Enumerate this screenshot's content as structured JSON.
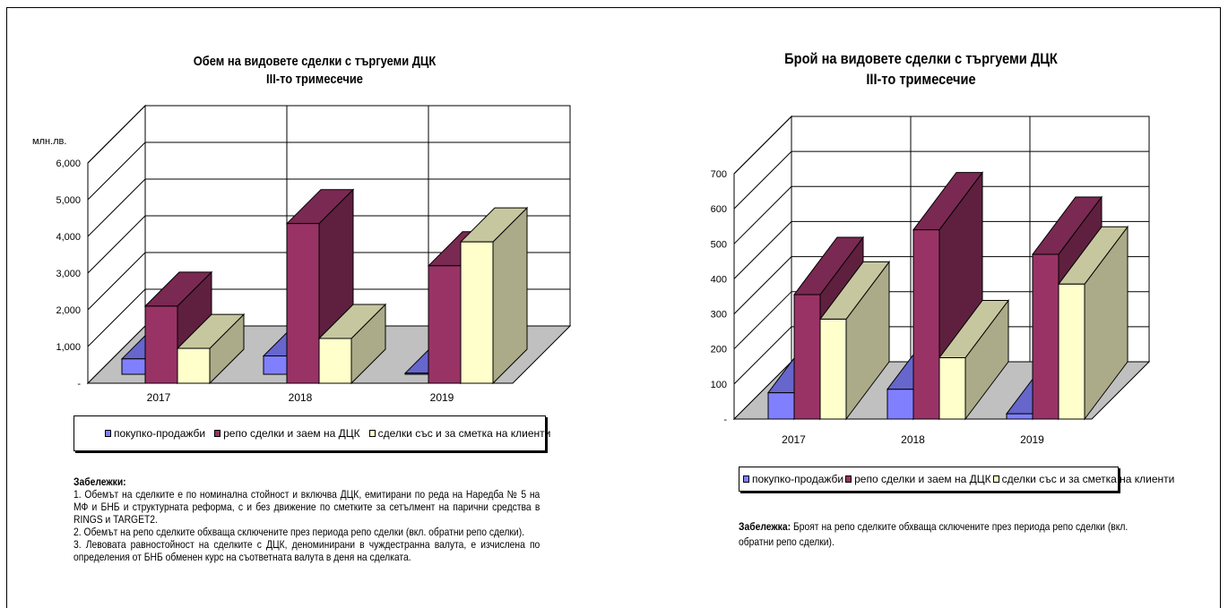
{
  "left": {
    "title_line1": "Обем на видовете сделки с търгуеми ДЦК",
    "title_line2": "III-то тримесечие",
    "unit_label": "млн.лв.",
    "notes_heading": "Забележки:",
    "notes": [
      "1. Обемът на сделките е по номинална стойност и включва ДЦК, емитирани по реда на Наредба № 5 на МФ и БНБ и структурната реформа, с и без движение по сметките за сетълмент на парични средства в RINGS и TARGET2.",
      "2. Обемът на репо сделките обхваща сключените през периода репо сделки (вкл. обратни репо сделки).",
      "3. Левовата равностойност на сделките с ДЦК, деноминирани в чуждестранна валута, е изчислена по определения от БНБ обменен курс на съответната валута в деня на сделката."
    ]
  },
  "right": {
    "title_line1": "Брой на видовете сделки с търгуеми ДЦК",
    "title_line2": "III-то тримесечие",
    "note_label": "Забележка:",
    "note_text": " Броят на репо сделките обхваща сключените през периода репо сделки (вкл. обратни репо сделки)."
  },
  "legend": {
    "item1": "покупко-продажби",
    "item2": "репо сделки и заем на ДЦК",
    "item3": "сделки със и за сметка на клиенти"
  },
  "colors": {
    "series1": "#8080ff",
    "series2": "#993366",
    "series3": "#ffffcc",
    "floor": "#c0c0c0"
  },
  "chart_data": [
    {
      "type": "bar",
      "title": "Обем на видовете сделки с търгуеми ДЦК III-то тримесечие",
      "ylabel": "млн.лв.",
      "categories": [
        "2017",
        "2018",
        "2019"
      ],
      "ylim": [
        0,
        6000
      ],
      "yticks": [
        "-",
        "1,000",
        "2,000",
        "3,000",
        "4,000",
        "5,000",
        "6,000"
      ],
      "series": [
        {
          "name": "покупко-продажби",
          "values": [
            420,
            500,
            30
          ]
        },
        {
          "name": "репо сделки и заем на ДЦК",
          "values": [
            2100,
            4350,
            3200
          ]
        },
        {
          "name": "сделки със и за сметка на клиенти",
          "values": [
            950,
            1220,
            3850
          ]
        }
      ],
      "legend_position": "bottom",
      "grid": true
    },
    {
      "type": "bar",
      "title": "Брой на видовете сделки с търгуеми ДЦК III-то тримесечие",
      "categories": [
        "2017",
        "2018",
        "2019"
      ],
      "ylim": [
        0,
        700
      ],
      "yticks": [
        "-",
        "100",
        "200",
        "300",
        "400",
        "500",
        "600",
        "700"
      ],
      "series": [
        {
          "name": "покупко-продажби",
          "values": [
            75,
            85,
            15
          ]
        },
        {
          "name": "репо сделки и заем на ДЦК",
          "values": [
            355,
            540,
            470
          ]
        },
        {
          "name": "сделки със и за сметка на клиенти",
          "values": [
            285,
            175,
            385
          ]
        }
      ],
      "legend_position": "bottom",
      "grid": true
    }
  ]
}
